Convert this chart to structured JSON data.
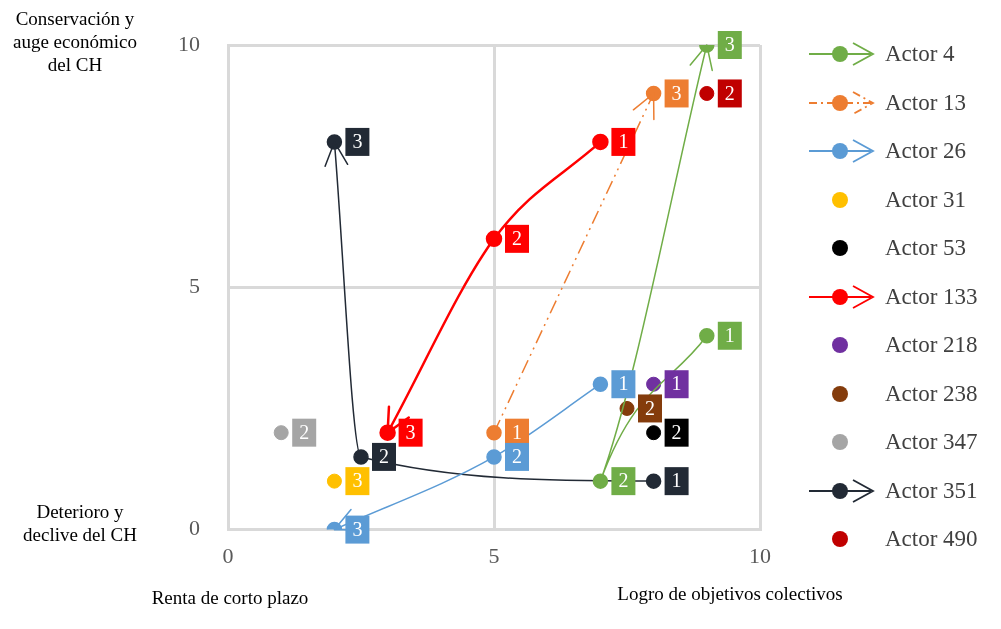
{
  "chart_data": {
    "type": "scatter",
    "xlim": [
      0,
      10
    ],
    "ylim": [
      0,
      10
    ],
    "xticks": [
      0,
      5,
      10
    ],
    "yticks": [
      0,
      5,
      10
    ],
    "grid": true,
    "legend": "right",
    "marker": "circle",
    "annotations": [
      "Conservación y auge económico del CH",
      "Deterioro y declive del CH",
      "Renta de corto plazo",
      "Logro de objetivos colectivos",
      {
        "text": "1",
        "x": 9,
        "y": 4
      },
      {
        "text": "2",
        "x": 7,
        "y": 1
      },
      {
        "text": "3",
        "x": 9,
        "y": 10
      },
      {
        "text": "1",
        "x": 5,
        "y": 2
      },
      {
        "text": "3",
        "x": 8,
        "y": 9
      },
      {
        "text": "1",
        "x": 7,
        "y": 3
      },
      {
        "text": "2",
        "x": 5,
        "y": 1.5
      },
      {
        "text": "3",
        "x": 2,
        "y": 0
      },
      {
        "text": "3",
        "x": 2,
        "y": 1
      },
      {
        "text": "2",
        "x": 8,
        "y": 2
      },
      {
        "text": "1",
        "x": 7,
        "y": 8
      },
      {
        "text": "2",
        "x": 5,
        "y": 6
      },
      {
        "text": "3",
        "x": 3,
        "y": 2
      },
      {
        "text": "1",
        "x": 8,
        "y": 3
      },
      {
        "text": "2",
        "x": 7.5,
        "y": 2.5
      },
      {
        "text": "2",
        "x": 1,
        "y": 2
      },
      {
        "text": "1",
        "x": 8,
        "y": 1
      },
      {
        "text": "2",
        "x": 2.5,
        "y": 1.5
      },
      {
        "text": "3",
        "x": 2,
        "y": 8
      },
      {
        "text": "2",
        "x": 9,
        "y": 9
      }
    ],
    "series": [
      {
        "name": "Actor 4",
        "type": "line",
        "color": "#70ad47",
        "x": [
          9,
          7,
          9
        ],
        "values": [
          4,
          1,
          10
        ]
      },
      {
        "name": "Actor 13",
        "type": "line",
        "line_style": "dashed",
        "color": "#ed7d31",
        "x": [
          5,
          8
        ],
        "values": [
          2,
          9
        ]
      },
      {
        "name": "Actor 26",
        "type": "line",
        "color": "#5b9bd5",
        "x": [
          7,
          5,
          2
        ],
        "values": [
          3,
          1.5,
          0
        ]
      },
      {
        "name": "Actor 31",
        "color": "#ffc000",
        "x": [
          2
        ],
        "values": [
          1
        ]
      },
      {
        "name": "Actor 53",
        "color": "#000000",
        "x": [
          8
        ],
        "values": [
          2
        ]
      },
      {
        "name": "Actor 133",
        "type": "line",
        "color": "#ff0000",
        "x": [
          7,
          5,
          3
        ],
        "values": [
          8,
          6,
          2
        ]
      },
      {
        "name": "Actor 218",
        "color": "#7030a0",
        "x": [
          8
        ],
        "values": [
          3
        ]
      },
      {
        "name": "Actor 238",
        "color": "#843c0c",
        "x": [
          7.5
        ],
        "values": [
          2.5
        ]
      },
      {
        "name": "Actor 347",
        "color": "#a5a5a5",
        "x": [
          1
        ],
        "values": [
          2
        ]
      },
      {
        "name": "Actor 351",
        "type": "line",
        "color": "#222a35",
        "x": [
          8,
          2.5,
          2
        ],
        "values": [
          1,
          1.5,
          8
        ]
      },
      {
        "name": "Actor 490",
        "color": "#c00000",
        "x": [
          9
        ],
        "values": [
          9
        ]
      }
    ]
  }
}
